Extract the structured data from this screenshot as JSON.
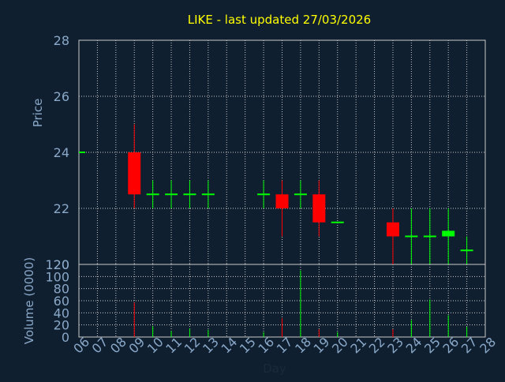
{
  "chart_data": {
    "type": "candlestick",
    "title": "LIKE - last updated 27/03/2026",
    "xlabel": "Day",
    "x_ticks": [
      "06",
      "07",
      "08",
      "09",
      "10",
      "11",
      "12",
      "13",
      "14",
      "15",
      "16",
      "17",
      "18",
      "19",
      "20",
      "21",
      "22",
      "23",
      "24",
      "25",
      "26",
      "27",
      "28"
    ],
    "price_panel": {
      "ylabel": "Price",
      "ylim": [
        20,
        28
      ],
      "y_ticks": [
        20,
        22,
        24,
        26,
        28
      ],
      "grid": true,
      "candles": [
        {
          "day": "06",
          "open": 24.0,
          "close": 24.0,
          "high": 24.0,
          "low": 24.0
        },
        {
          "day": "09",
          "open": 24.0,
          "close": 22.5,
          "high": 25.0,
          "low": 22.0
        },
        {
          "day": "10",
          "open": 22.5,
          "close": 22.5,
          "high": 23.0,
          "low": 22.0
        },
        {
          "day": "11",
          "open": 22.5,
          "close": 22.5,
          "high": 23.0,
          "low": 22.0
        },
        {
          "day": "12",
          "open": 22.5,
          "close": 22.5,
          "high": 23.0,
          "low": 22.0
        },
        {
          "day": "13",
          "open": 22.5,
          "close": 22.5,
          "high": 23.0,
          "low": 22.0
        },
        {
          "day": "16",
          "open": 22.5,
          "close": 22.5,
          "high": 23.0,
          "low": 22.0
        },
        {
          "day": "17",
          "open": 22.5,
          "close": 22.0,
          "high": 23.0,
          "low": 21.0
        },
        {
          "day": "18",
          "open": 22.5,
          "close": 22.5,
          "high": 23.0,
          "low": 22.0
        },
        {
          "day": "19",
          "open": 22.5,
          "close": 21.5,
          "high": 23.0,
          "low": 21.0
        },
        {
          "day": "20",
          "open": 21.5,
          "close": 21.5,
          "high": 21.5,
          "low": 21.5
        },
        {
          "day": "23",
          "open": 21.5,
          "close": 21.0,
          "high": 22.0,
          "low": 20.0
        },
        {
          "day": "24",
          "open": 21.0,
          "close": 21.0,
          "high": 22.0,
          "low": 20.0
        },
        {
          "day": "25",
          "open": 21.0,
          "close": 21.0,
          "high": 22.0,
          "low": 20.0
        },
        {
          "day": "26",
          "open": 21.0,
          "close": 21.2,
          "high": 22.0,
          "low": 20.0
        },
        {
          "day": "27",
          "open": 20.5,
          "close": 20.5,
          "high": 21.0,
          "low": 20.0
        }
      ]
    },
    "volume_panel": {
      "ylabel": "Volume (0000)",
      "ylim": [
        0,
        120
      ],
      "y_ticks": [
        0,
        20,
        40,
        60,
        80,
        100,
        120
      ],
      "grid": true,
      "bars": [
        {
          "day": "06",
          "value": 0,
          "direction": "up"
        },
        {
          "day": "09",
          "value": 57,
          "direction": "down"
        },
        {
          "day": "10",
          "value": 18,
          "direction": "up"
        },
        {
          "day": "11",
          "value": 10,
          "direction": "up"
        },
        {
          "day": "12",
          "value": 14,
          "direction": "up"
        },
        {
          "day": "13",
          "value": 12,
          "direction": "up"
        },
        {
          "day": "16",
          "value": 8,
          "direction": "up"
        },
        {
          "day": "17",
          "value": 31,
          "direction": "down"
        },
        {
          "day": "18",
          "value": 110,
          "direction": "up"
        },
        {
          "day": "19",
          "value": 13,
          "direction": "down"
        },
        {
          "day": "20",
          "value": 8,
          "direction": "up"
        },
        {
          "day": "23",
          "value": 13,
          "direction": "down"
        },
        {
          "day": "24",
          "value": 28,
          "direction": "up"
        },
        {
          "day": "25",
          "value": 62,
          "direction": "up"
        },
        {
          "day": "26",
          "value": 36,
          "direction": "up"
        },
        {
          "day": "27",
          "value": 17,
          "direction": "up"
        }
      ]
    },
    "colors": {
      "background": "#0f1f30",
      "title": "#ffff00",
      "axis_text": "#8aa8c8",
      "grid": "#c8c8c8",
      "up": "#00ff00",
      "down": "#ff0000",
      "frame": "#c8c8c8"
    }
  }
}
